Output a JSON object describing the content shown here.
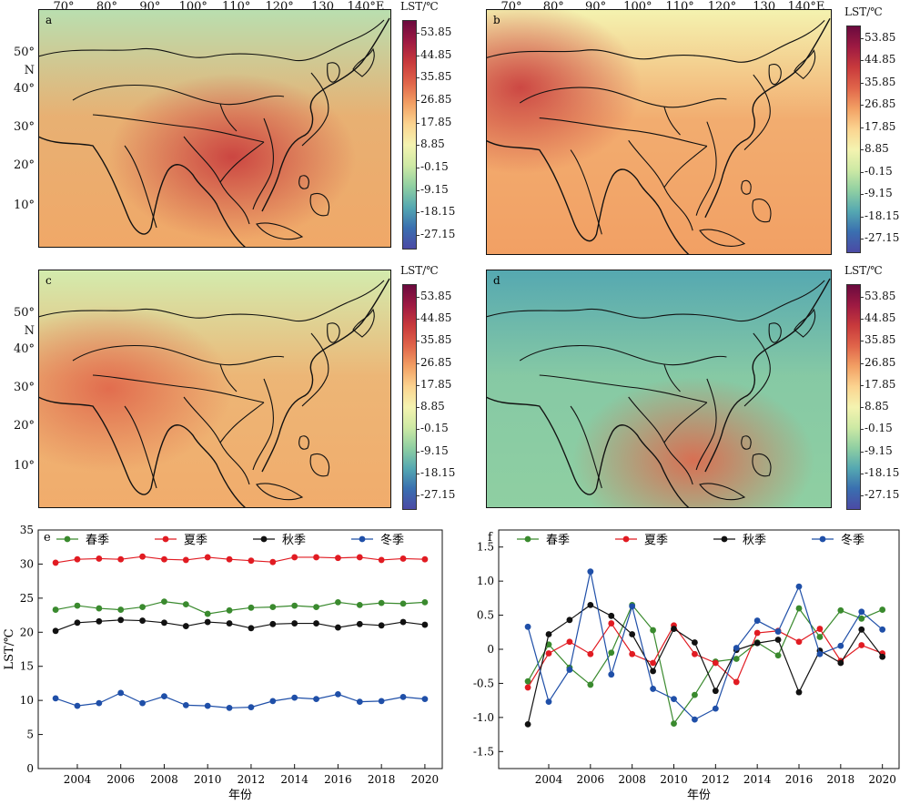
{
  "maps": {
    "lon_ticks": [
      "70°",
      "80°",
      "90°",
      "100°",
      "110°",
      "120°",
      "130",
      "140°E"
    ],
    "lat_ticks": [
      "50°",
      "N",
      "40°",
      "30°",
      "20°",
      "10°"
    ],
    "colorbar": {
      "title": "LST/℃",
      "ticks": [
        "53.85",
        "44.85",
        "35.85",
        "26.85",
        "17.85",
        "8.85",
        "-0.15",
        "-9.15",
        "-18.15",
        "-27.15"
      ],
      "colors": [
        "#6b0a3e",
        "#9e1a42",
        "#c83a3c",
        "#e0654a",
        "#f2a064",
        "#fbd490",
        "#f4f3b0",
        "#cde9a4",
        "#8fcfa2",
        "#55a8b1",
        "#3a6fb0",
        "#4b4aa5"
      ]
    },
    "panels": [
      {
        "label": "a",
        "show_lon": true,
        "show_lat": true
      },
      {
        "label": "b",
        "show_lon": true,
        "show_lat": false
      },
      {
        "label": "c",
        "show_lon": false,
        "show_lat": true
      },
      {
        "label": "d",
        "show_lon": false,
        "show_lat": false
      }
    ]
  },
  "chart_data": [
    {
      "type": "line",
      "panel_label": "e",
      "title": "",
      "xlabel": "年份",
      "ylabel": "LST/℃",
      "ylim": [
        0,
        35
      ],
      "xlim": [
        2002.2,
        2020.8
      ],
      "x_ticks": [
        "2004",
        "2006",
        "2008",
        "2010",
        "2012",
        "2014",
        "2016",
        "2018",
        "2020"
      ],
      "y_ticks": [
        "0",
        "5",
        "10",
        "15",
        "20",
        "25",
        "30",
        "35"
      ],
      "legend_position": "top",
      "x": [
        2003,
        2004,
        2005,
        2006,
        2007,
        2008,
        2009,
        2010,
        2011,
        2012,
        2013,
        2014,
        2015,
        2016,
        2017,
        2018,
        2019,
        2020
      ],
      "series": [
        {
          "name": "春季",
          "color": "#3a8a2e",
          "values": [
            23.3,
            23.9,
            23.5,
            23.3,
            23.7,
            24.5,
            24.1,
            22.7,
            23.2,
            23.6,
            23.7,
            23.9,
            23.7,
            24.4,
            24.0,
            24.3,
            24.2,
            24.4
          ]
        },
        {
          "name": "夏季",
          "color": "#e11b22",
          "values": [
            30.2,
            30.7,
            30.8,
            30.7,
            31.1,
            30.7,
            30.6,
            31.0,
            30.7,
            30.5,
            30.3,
            31.0,
            31.0,
            30.9,
            31.0,
            30.6,
            30.8,
            30.7
          ]
        },
        {
          "name": "秋季",
          "color": "#111111",
          "values": [
            20.2,
            21.4,
            21.6,
            21.8,
            21.7,
            21.4,
            20.9,
            21.5,
            21.3,
            20.6,
            21.2,
            21.3,
            21.3,
            20.7,
            21.2,
            21.0,
            21.5,
            21.1
          ]
        },
        {
          "name": "冬季",
          "color": "#1f4fa8",
          "values": [
            10.3,
            9.2,
            9.6,
            11.1,
            9.6,
            10.6,
            9.3,
            9.2,
            8.9,
            9.0,
            9.9,
            10.4,
            10.2,
            10.9,
            9.8,
            9.9,
            10.5,
            10.2
          ]
        }
      ]
    },
    {
      "type": "line",
      "panel_label": "f",
      "title": "",
      "xlabel": "年份",
      "ylabel": "",
      "ylim": [
        -1.75,
        1.75
      ],
      "xlim": [
        2001.6,
        2020.8
      ],
      "x_ticks": [
        "2004",
        "2006",
        "2008",
        "2010",
        "2012",
        "2014",
        "2016",
        "2018",
        "2020"
      ],
      "y_ticks": [
        "1.5",
        "1.0",
        "0.5",
        "0",
        "-0.5",
        "-1.0",
        "-1.5"
      ],
      "legend_position": "top",
      "x": [
        2003,
        2004,
        2005,
        2006,
        2007,
        2008,
        2009,
        2010,
        2011,
        2012,
        2013,
        2014,
        2015,
        2016,
        2017,
        2018,
        2019,
        2020
      ],
      "series": [
        {
          "name": "春季",
          "color": "#3a8a2e",
          "values": [
            -0.47,
            0.07,
            -0.27,
            -0.52,
            -0.05,
            0.65,
            0.28,
            -1.09,
            -0.67,
            -0.18,
            -0.14,
            0.1,
            -0.09,
            0.6,
            0.18,
            0.57,
            0.45,
            0.58
          ]
        },
        {
          "name": "夏季",
          "color": "#e11b22",
          "values": [
            -0.56,
            -0.06,
            0.11,
            -0.07,
            0.38,
            -0.07,
            -0.2,
            0.35,
            -0.07,
            -0.2,
            -0.48,
            0.24,
            0.27,
            0.11,
            0.3,
            -0.17,
            0.06,
            -0.06
          ]
        },
        {
          "name": "秋季",
          "color": "#111111",
          "values": [
            -1.1,
            0.22,
            0.43,
            0.65,
            0.49,
            0.22,
            -0.32,
            0.3,
            0.1,
            -0.61,
            -0.01,
            0.09,
            0.14,
            -0.63,
            -0.02,
            -0.2,
            0.29,
            -0.11
          ]
        },
        {
          "name": "冬季",
          "color": "#1f4fa8",
          "values": [
            0.33,
            -0.77,
            -0.3,
            1.14,
            -0.37,
            0.63,
            -0.58,
            -0.73,
            -1.03,
            -0.87,
            0.02,
            0.42,
            0.26,
            0.92,
            -0.07,
            0.05,
            0.55,
            0.29
          ]
        }
      ]
    }
  ]
}
